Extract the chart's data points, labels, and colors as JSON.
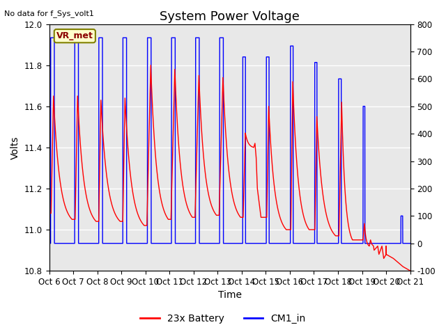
{
  "title": "System Power Voltage",
  "top_left_text": "No data for f_Sys_volt1",
  "ylabel_left": "Volts",
  "xlabel": "Time",
  "xlim_days": [
    0,
    15
  ],
  "ylim_left": [
    10.8,
    12.0
  ],
  "ylim_right": [
    -100,
    800
  ],
  "x_tick_labels": [
    "Oct 6",
    "Oct 7",
    "Oct 8",
    "Oct 9",
    "Oct 10",
    "Oct 11",
    "Oct 12",
    "Oct 13",
    "Oct 14",
    "Oct 15",
    "Oct 16",
    "Oct 17",
    "Oct 18",
    "Oct 19",
    "Oct 20",
    "Oct 21"
  ],
  "legend_entries": [
    "23x Battery",
    "CM1_in"
  ],
  "legend_colors": [
    "red",
    "blue"
  ],
  "vr_met_label": "VR_met",
  "bg_color": "#e8e8e8",
  "title_fontsize": 13,
  "label_fontsize": 10,
  "tick_fontsize": 8.5,
  "y_left_ticks": [
    10.8,
    11.0,
    11.2,
    11.4,
    11.6,
    11.8,
    12.0
  ],
  "y_right_ticks": [
    -100,
    0,
    100,
    200,
    300,
    400,
    500,
    600,
    700,
    800
  ]
}
